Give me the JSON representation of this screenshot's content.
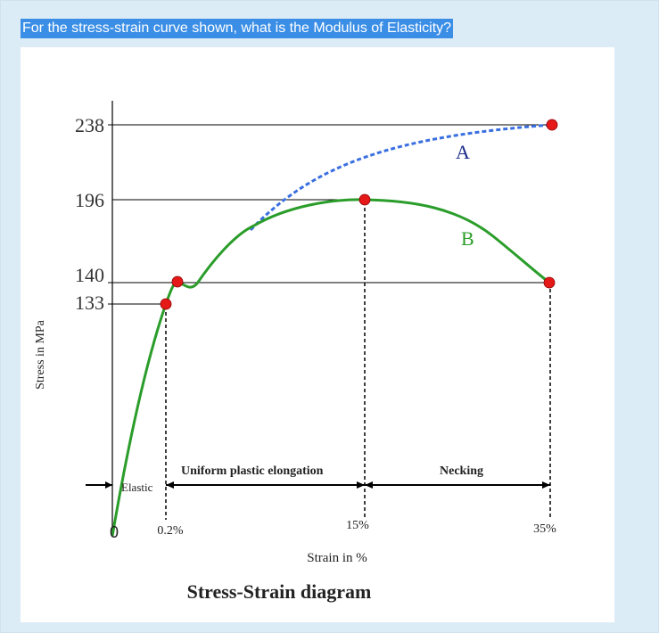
{
  "question": "For the stress-strain curve shown, what is the Modulus of Elasticity?",
  "diagram": {
    "title": "Stress-Strain diagram",
    "y_axis_label": "Stress in MPa",
    "x_axis_label": "Strain in %",
    "y_ticks": [
      "238",
      "196",
      "140",
      "133"
    ],
    "x_ticks": [
      "0",
      "0.2%",
      "15%",
      "35%"
    ],
    "regions": {
      "elastic": "Elastic",
      "uniform": "Uniform plastic elongation",
      "necking": "Necking"
    },
    "curve_labels": {
      "a": "A",
      "b": "B"
    },
    "colors": {
      "curve_b": "#2a9d2a",
      "curve_a": "#3a6fe0",
      "points": "#e61919",
      "question_bg": "#3b8ee6"
    }
  }
}
